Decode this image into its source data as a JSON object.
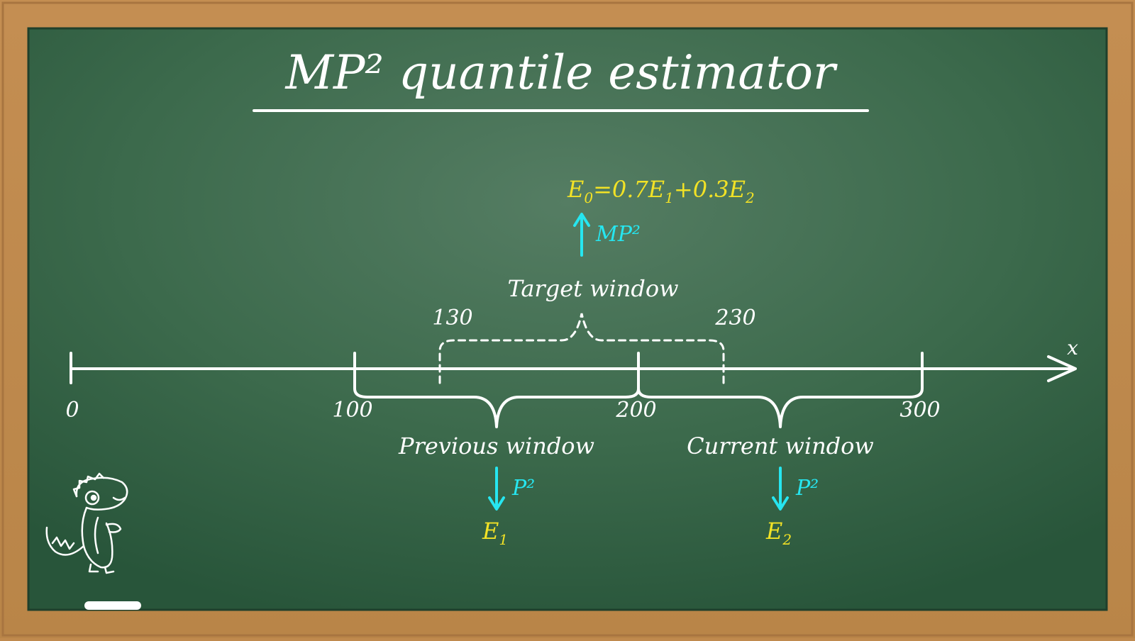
{
  "title": "MP² quantile estimator",
  "axis": {
    "label": "x",
    "ticks": [
      "0",
      "100",
      "200",
      "300"
    ],
    "target_ticks": [
      "130",
      "230"
    ]
  },
  "windows": {
    "target": "Target window",
    "previous": "Previous window",
    "current": "Current window"
  },
  "arrows": {
    "up_label": "MP²",
    "previous_label": "P²",
    "current_label": "P²"
  },
  "estimates": {
    "combined": {
      "E0": "E",
      "E0_sub": "0",
      "eq_mid": "=0.7",
      "E1": "E",
      "E1_sub": "1",
      "plus": "+0.3",
      "E2": "E",
      "E2_sub": "2"
    },
    "previous": {
      "E": "E",
      "sub": "1"
    },
    "current": {
      "E": "E",
      "sub": "2"
    }
  },
  "colors": {
    "board": "#3f6c50",
    "frame": "#c08a4e",
    "chalk": "#ffffff",
    "yellow": "#f2e226",
    "cyan": "#26e6f0"
  },
  "icons": [
    "dino-icon",
    "chalk-icon"
  ]
}
